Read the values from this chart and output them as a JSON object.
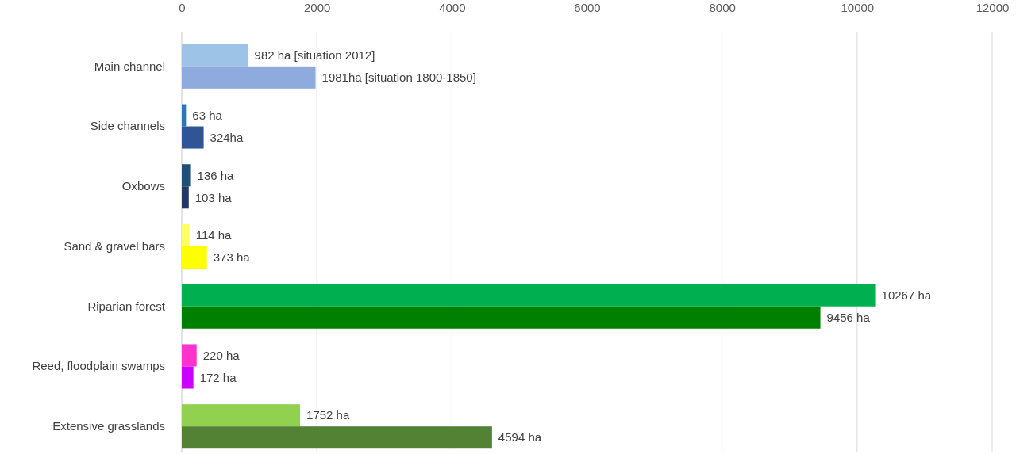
{
  "chart_data": {
    "type": "bar",
    "orientation": "horizontal",
    "categories": [
      "Main channel",
      "Side channels",
      "Oxbows",
      "Sand & gravel bars",
      "Riparian forest",
      "Reed, floodplain swamps",
      "Extensive grasslands"
    ],
    "series": [
      {
        "colors": [
          "#9dc3e6",
          "#2e75b6",
          "#1f4e79",
          "#ffff66",
          "#00b050",
          "#ff33cc",
          "#92d050"
        ],
        "values": [
          982,
          63,
          136,
          114,
          10267,
          220,
          1752
        ],
        "value_labels": [
          "982 ha [situation 2012]",
          "63 ha",
          "136 ha",
          "114 ha",
          "10267 ha",
          "220 ha",
          "1752 ha"
        ]
      },
      {
        "colors": [
          "#8faadc",
          "#2f5597",
          "#203864",
          "#ffff00",
          "#008000",
          "#cc00ff",
          "#548235"
        ],
        "values": [
          1981,
          324,
          103,
          373,
          9456,
          172,
          4594
        ],
        "value_labels": [
          "1981ha [situation 1800-1850]",
          "324ha",
          "103 ha",
          "373 ha",
          "9456 ha",
          "172 ha",
          "4594 ha"
        ]
      }
    ],
    "xlim": [
      0,
      12000
    ],
    "xticks": [
      0,
      2000,
      4000,
      6000,
      8000,
      10000,
      12000
    ],
    "grid": "x"
  }
}
